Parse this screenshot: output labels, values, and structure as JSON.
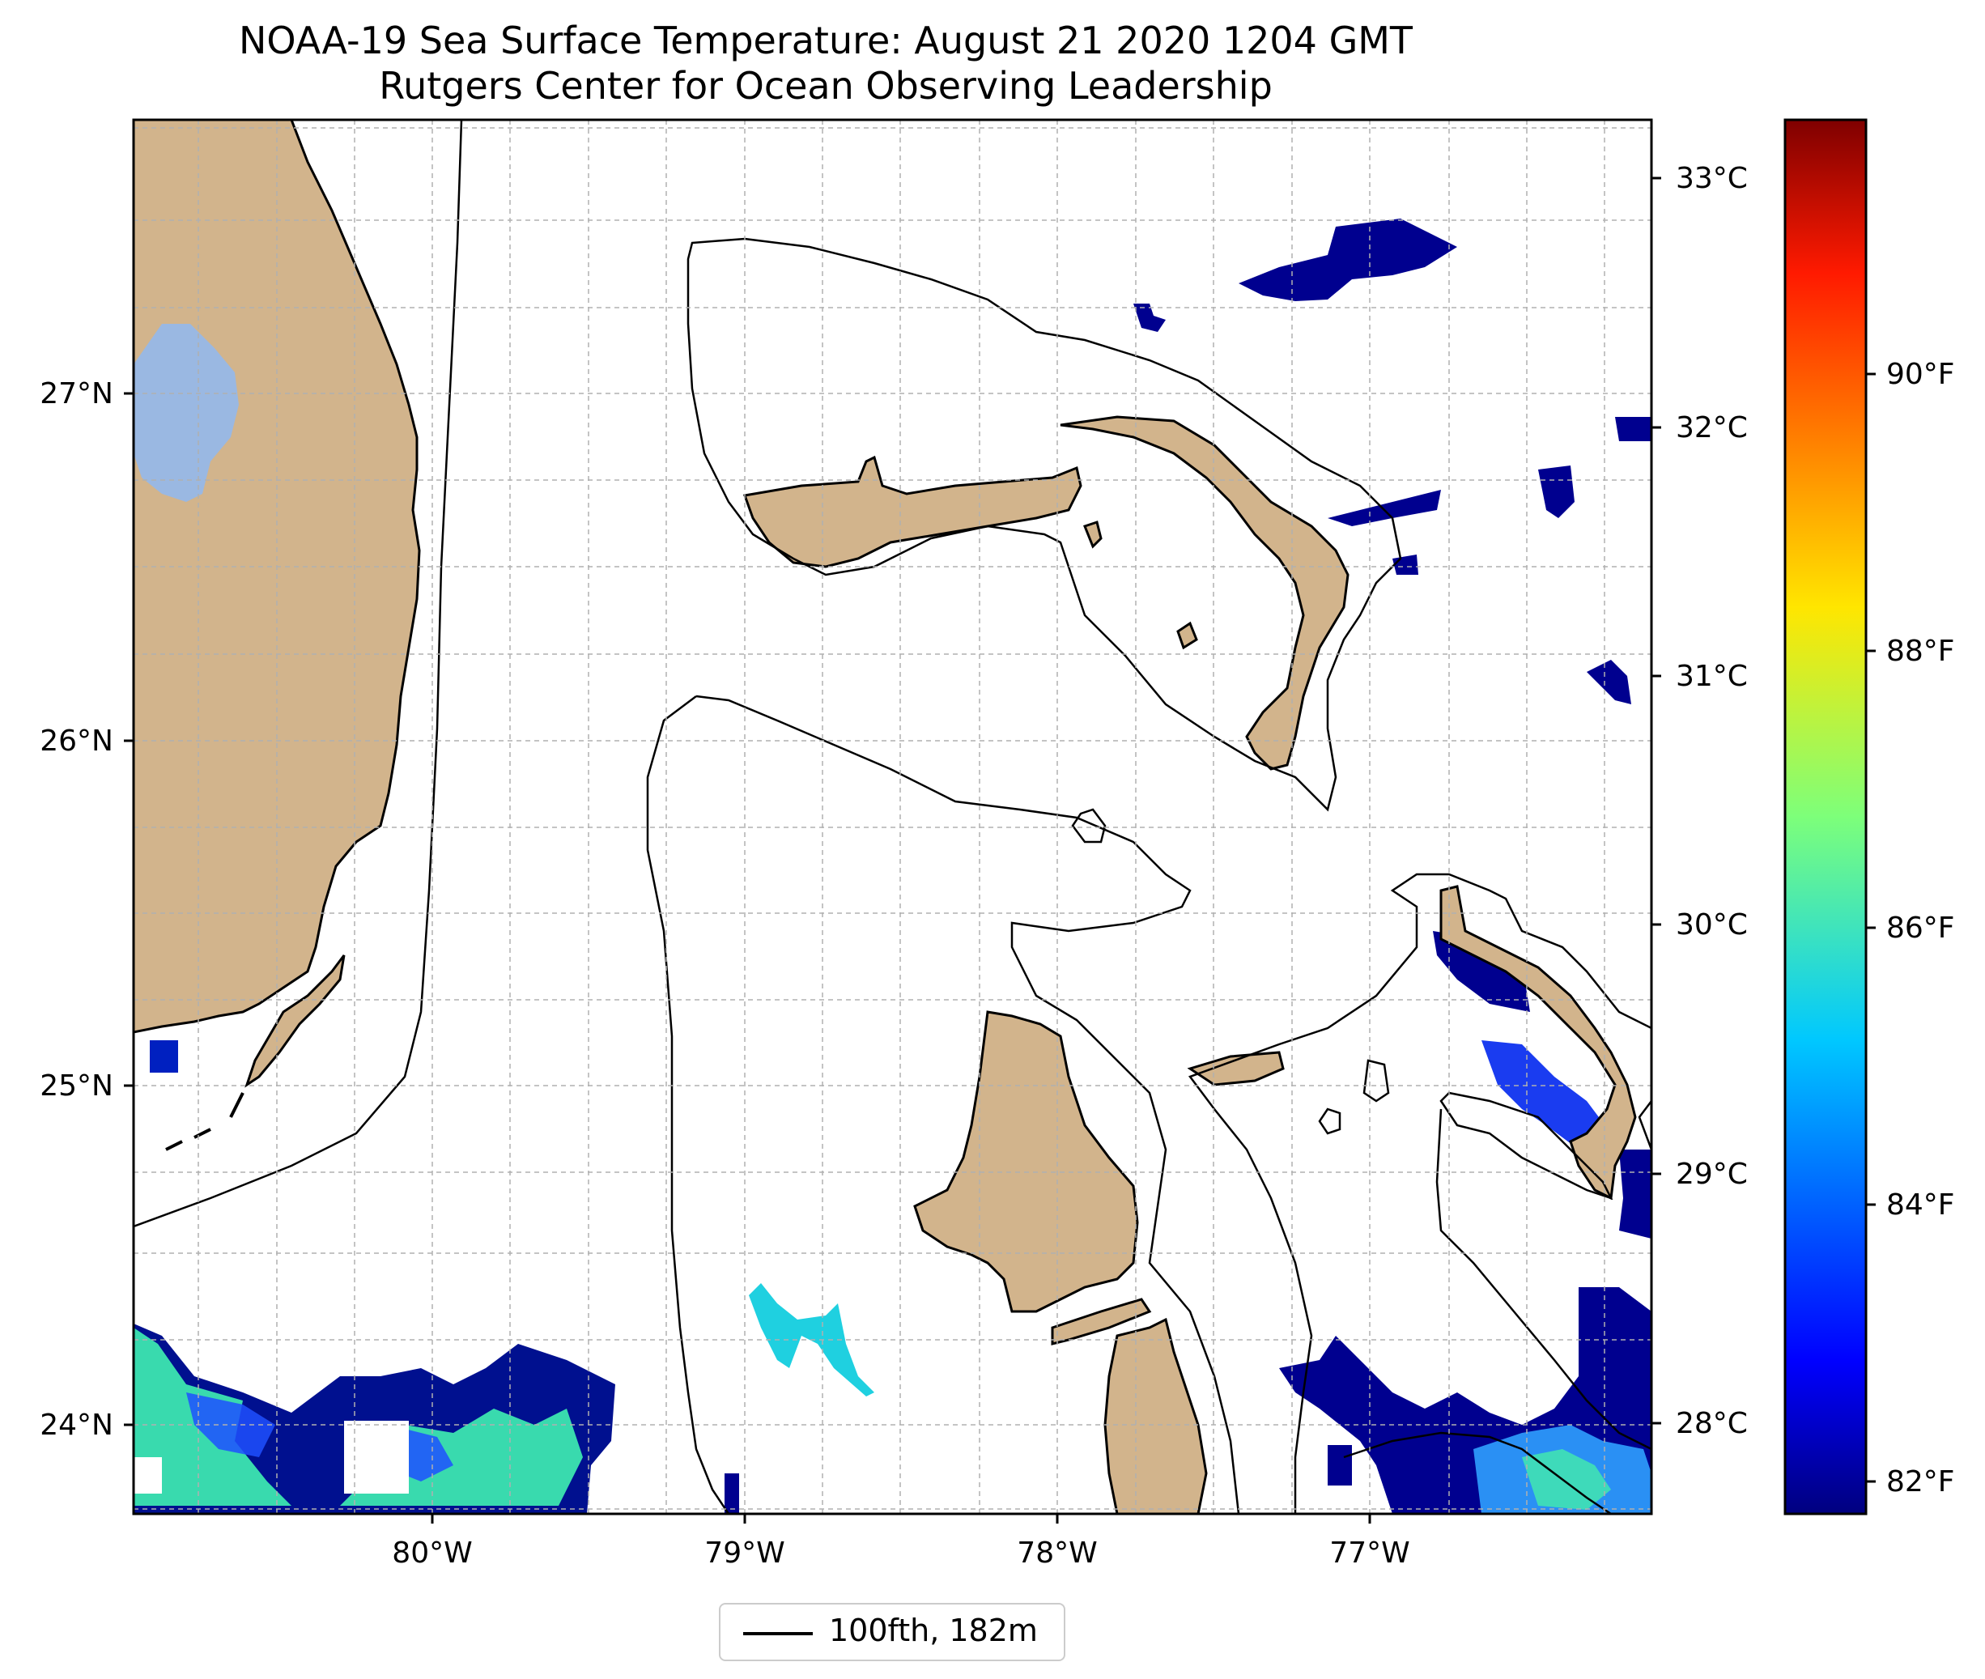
{
  "map": {
    "title_line1": "NOAA-19 Sea Surface Temperature: August 21 2020 1204 GMT",
    "title_line2": "Rutgers Center for Ocean Observing Leadership",
    "longitude_labels": [
      "80°W",
      "79°W",
      "78°W",
      "77°W"
    ],
    "latitude_labels": [
      "27°N",
      "26°N",
      "25°N",
      "24°N"
    ],
    "celsius_labels": [
      "33°C",
      "32°C",
      "31°C",
      "30°C",
      "29°C",
      "28°C"
    ],
    "fahrenheit_labels": [
      "90°F",
      "88°F",
      "86°F",
      "84°F",
      "82°F"
    ],
    "legend": {
      "label": "100fth, 182m"
    },
    "colors": {
      "land": "#d2b48c",
      "lake": "#9ab8e2",
      "cold": "#00008f",
      "warm": "#7f0000"
    },
    "colormap": "jet",
    "gridlines": true
  }
}
